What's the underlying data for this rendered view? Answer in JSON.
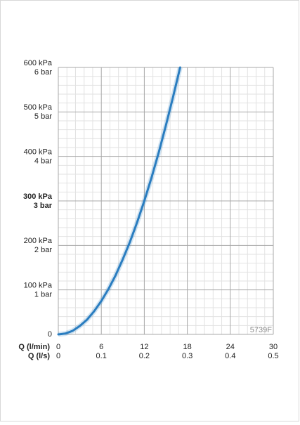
{
  "chart_data": {
    "type": "line",
    "annotation": "5739F",
    "xlabel": "Q (l/min)",
    "x2label": "Q (l/s)",
    "xlim": [
      0,
      30
    ],
    "xticks": [
      0,
      6,
      12,
      18,
      24,
      30
    ],
    "x2lim": [
      0,
      0.5
    ],
    "x2ticks": [
      0,
      0.1,
      0.2,
      0.3,
      0.4,
      0.5
    ],
    "ylim": [
      0,
      600
    ],
    "yticks": [
      0,
      {
        "value": 100,
        "label": "100 kPa"
      },
      {
        "value": 200,
        "label": "200 kPa"
      },
      {
        "value": 300,
        "label": "300 kPa"
      },
      {
        "value": 400,
        "label": "400 kPa"
      },
      {
        "value": 500,
        "label": "500 kPa"
      },
      {
        "value": 600,
        "label": "600 kPa"
      }
    ],
    "y_bar_labels": [
      null,
      "1 bar",
      "2 bar",
      "3 bar",
      "4 bar",
      "5 bar",
      "6 bar"
    ],
    "bold_ytick": 300,
    "grid": true,
    "series": [
      {
        "color": "#2a7dc0",
        "x": [
          0,
          1,
          2,
          3,
          4,
          5,
          6,
          7,
          8,
          9,
          10,
          11,
          12,
          13,
          14,
          15,
          16,
          17
        ],
        "values": [
          0,
          2,
          8,
          19,
          33,
          52,
          75,
          102,
          133,
          169,
          208,
          252,
          300,
          352,
          408,
          469,
          533,
          600
        ]
      }
    ]
  }
}
